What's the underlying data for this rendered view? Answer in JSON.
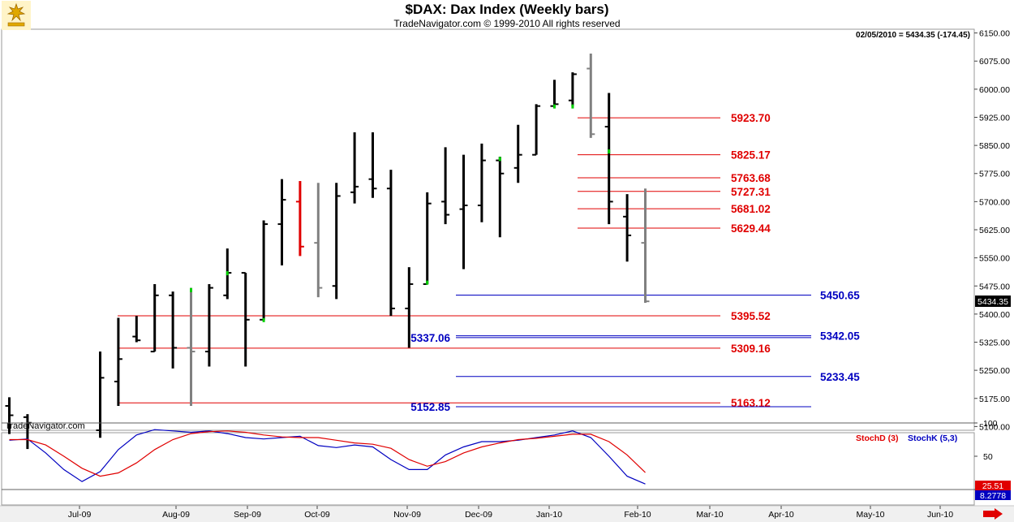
{
  "window": {
    "title": "$DAX:  Dax Index  (Weekly bars)",
    "subtitle": "TradeNavigator.com © 1999-2010 All rights reserved",
    "watermark": "TradeNavigator.com"
  },
  "chart_data": {
    "type": "ohlc",
    "last_bar_readout": "02/05/2010 = 5434.35 (-174.45)",
    "y_range": [
      5090,
      6160
    ],
    "y_ticks": [
      "6150.00",
      "6075.00",
      "6000.00",
      "5925.00",
      "5850.00",
      "5775.00",
      "5700.00",
      "5625.00",
      "5550.00",
      "5475.00",
      "5400.00",
      "5325.00",
      "5250.00",
      "5175.00",
      "5100.00"
    ],
    "x_labels": [
      "Jul-09",
      "Aug-09",
      "Sep-09",
      "Oct-09",
      "Nov-09",
      "Dec-09",
      "Jan-10",
      "Feb-10",
      "Mar-10",
      "Apr-10",
      "May-10",
      "Jun-10"
    ],
    "last_price_label": "5434.35",
    "bars": [
      {
        "week": 0,
        "open": 5155,
        "high": 5178,
        "low": 5080,
        "close": 5130,
        "color": "#000000"
      },
      {
        "week": 1,
        "open": 5125,
        "high": 5133,
        "low": 5040,
        "close": 5110,
        "color": "#000000"
      },
      {
        "week": 5,
        "open": 5090,
        "high": 5300,
        "low": 5070,
        "close": 5230,
        "color": "#000000"
      },
      {
        "week": 6,
        "open": 5220,
        "high": 5390,
        "low": 5155,
        "close": 5280,
        "color": "#000000"
      },
      {
        "week": 7,
        "open": 5340,
        "high": 5395,
        "low": 5325,
        "close": 5330,
        "color": "#000000"
      },
      {
        "week": 8,
        "open": 5300,
        "high": 5480,
        "low": 5300,
        "close": 5450,
        "color": "#000000"
      },
      {
        "week": 9,
        "open": 5450,
        "high": 5460,
        "low": 5255,
        "close": 5310,
        "color": "#000000"
      },
      {
        "week": 10,
        "open": 5310,
        "high": 5470,
        "low": 5155,
        "close": 5300,
        "color": "#808080"
      },
      {
        "week": 11,
        "open": 5300,
        "high": 5480,
        "low": 5260,
        "close": 5470,
        "color": "#000000"
      },
      {
        "week": 12,
        "open": 5450,
        "high": 5575,
        "low": 5440,
        "close": 5510,
        "color": "#000000"
      },
      {
        "week": 13,
        "open": 5510,
        "high": 5510,
        "low": 5260,
        "close": 5385,
        "color": "#000000"
      },
      {
        "week": 14,
        "open": 5385,
        "high": 5650,
        "low": 5385,
        "close": 5640,
        "color": "#000000"
      },
      {
        "week": 15,
        "open": 5640,
        "high": 5760,
        "low": 5530,
        "close": 5705,
        "color": "#000000"
      },
      {
        "week": 16,
        "open": 5700,
        "high": 5755,
        "low": 5555,
        "close": 5580,
        "color": "#e00000"
      },
      {
        "week": 17,
        "open": 5590,
        "high": 5750,
        "low": 5445,
        "close": 5470,
        "color": "#808080"
      },
      {
        "week": 18,
        "open": 5475,
        "high": 5750,
        "low": 5440,
        "close": 5715,
        "color": "#000000"
      },
      {
        "week": 19,
        "open": 5725,
        "high": 5885,
        "low": 5695,
        "close": 5740,
        "color": "#000000"
      },
      {
        "week": 20,
        "open": 5760,
        "high": 5885,
        "low": 5710,
        "close": 5735,
        "color": "#000000"
      },
      {
        "week": 21,
        "open": 5735,
        "high": 5785,
        "low": 5395,
        "close": 5415,
        "color": "#000000"
      },
      {
        "week": 22,
        "open": 5415,
        "high": 5525,
        "low": 5310,
        "close": 5480,
        "color": "#000000"
      },
      {
        "week": 23,
        "open": 5480,
        "high": 5725,
        "low": 5480,
        "close": 5695,
        "color": "#000000"
      },
      {
        "week": 24,
        "open": 5700,
        "high": 5845,
        "low": 5640,
        "close": 5665,
        "color": "#000000"
      },
      {
        "week": 25,
        "open": 5680,
        "high": 5825,
        "low": 5520,
        "close": 5690,
        "color": "#000000"
      },
      {
        "week": 26,
        "open": 5690,
        "high": 5855,
        "low": 5645,
        "close": 5810,
        "color": "#000000"
      },
      {
        "week": 27,
        "open": 5810,
        "high": 5820,
        "low": 5605,
        "close": 5775,
        "color": "#000000"
      },
      {
        "week": 28,
        "open": 5790,
        "high": 5905,
        "low": 5750,
        "close": 5825,
        "color": "#000000"
      },
      {
        "week": 29,
        "open": 5825,
        "high": 5960,
        "low": 5825,
        "close": 5955,
        "color": "#000000"
      },
      {
        "week": 30,
        "open": 5955,
        "high": 6025,
        "low": 5955,
        "close": 5960,
        "color": "#000000"
      },
      {
        "week": 31,
        "open": 5970,
        "high": 6045,
        "low": 5955,
        "close": 6040,
        "color": "#000000"
      },
      {
        "week": 32,
        "open": 6055,
        "high": 6095,
        "low": 5870,
        "close": 5880,
        "color": "#808080"
      },
      {
        "week": 33,
        "open": 5900,
        "high": 5990,
        "low": 5640,
        "close": 5700,
        "color": "#000000"
      },
      {
        "week": 34,
        "open": 5660,
        "high": 5720,
        "low": 5540,
        "close": 5610,
        "color": "#000000"
      },
      {
        "week": 35,
        "open": 5590,
        "high": 5735,
        "low": 5430,
        "close": 5434,
        "color": "#808080"
      }
    ],
    "green_marks": [
      {
        "week": 10,
        "price": 5465
      },
      {
        "week": 12,
        "price": 5510
      },
      {
        "week": 14,
        "price": 5385
      },
      {
        "week": 23,
        "price": 5485
      },
      {
        "week": 27,
        "price": 5815
      },
      {
        "week": 30,
        "price": 5955
      },
      {
        "week": 31,
        "price": 5955
      },
      {
        "week": 33,
        "price": 5835
      }
    ],
    "levels": [
      {
        "value": 5923.7,
        "label": "5923.70",
        "color": "#e00000"
      },
      {
        "value": 5825.17,
        "label": "5825.17",
        "color": "#e00000"
      },
      {
        "value": 5763.68,
        "label": "5763.68",
        "color": "#e00000"
      },
      {
        "value": 5727.31,
        "label": "5727.31",
        "color": "#e00000"
      },
      {
        "value": 5681.02,
        "label": "5681.02",
        "color": "#e00000"
      },
      {
        "value": 5629.44,
        "label": "5629.44",
        "color": "#e00000"
      },
      {
        "value": 5395.52,
        "label": "5395.52",
        "color": "#e00000"
      },
      {
        "value": 5309.16,
        "label": "5309.16",
        "color": "#e00000"
      },
      {
        "value": 5163.12,
        "label": "5163.12",
        "color": "#e00000"
      },
      {
        "value": 5450.65,
        "label": "5450.65",
        "color": "#0000c0"
      },
      {
        "value": 5342.05,
        "label": "5342.05",
        "color": "#0000c0"
      },
      {
        "value": 5337.06,
        "label": "5337.06",
        "color": "#0000c0"
      },
      {
        "value": 5233.45,
        "label": "5233.45",
        "color": "#0000c0"
      },
      {
        "value": 5152.85,
        "label": "5152.85",
        "color": "#0000c0"
      }
    ],
    "stochastic": {
      "y_ticks": [
        "100",
        "50",
        "0"
      ],
      "stochd_label": "StochD (3)",
      "stochk_label": "StochK (5,3)",
      "stochd_color": "#e00000",
      "stochk_color": "#0000c0",
      "stochd_last": "25.51",
      "stochk_last": "8.2778",
      "stochd": [
        {
          "week": 0,
          "v": 75
        },
        {
          "week": 1,
          "v": 75
        },
        {
          "week": 2,
          "v": 67
        },
        {
          "week": 3,
          "v": 50
        },
        {
          "week": 4,
          "v": 32
        },
        {
          "week": 5,
          "v": 20
        },
        {
          "week": 6,
          "v": 25
        },
        {
          "week": 7,
          "v": 40
        },
        {
          "week": 8,
          "v": 60
        },
        {
          "week": 9,
          "v": 75
        },
        {
          "week": 10,
          "v": 84
        },
        {
          "week": 11,
          "v": 87
        },
        {
          "week": 12,
          "v": 88
        },
        {
          "week": 13,
          "v": 86
        },
        {
          "week": 14,
          "v": 82
        },
        {
          "week": 15,
          "v": 79
        },
        {
          "week": 16,
          "v": 78
        },
        {
          "week": 17,
          "v": 78
        },
        {
          "week": 18,
          "v": 74
        },
        {
          "week": 19,
          "v": 70
        },
        {
          "week": 20,
          "v": 68
        },
        {
          "week": 21,
          "v": 62
        },
        {
          "week": 22,
          "v": 45
        },
        {
          "week": 23,
          "v": 35
        },
        {
          "week": 24,
          "v": 42
        },
        {
          "week": 25,
          "v": 55
        },
        {
          "week": 26,
          "v": 64
        },
        {
          "week": 27,
          "v": 70
        },
        {
          "week": 28,
          "v": 75
        },
        {
          "week": 29,
          "v": 77
        },
        {
          "week": 30,
          "v": 80
        },
        {
          "week": 31,
          "v": 83
        },
        {
          "week": 32,
          "v": 83
        },
        {
          "week": 33,
          "v": 72
        },
        {
          "week": 34,
          "v": 52
        },
        {
          "week": 35,
          "v": 25.51
        }
      ],
      "stochk": [
        {
          "week": 0,
          "v": 74
        },
        {
          "week": 1,
          "v": 76
        },
        {
          "week": 2,
          "v": 55
        },
        {
          "week": 3,
          "v": 30
        },
        {
          "week": 4,
          "v": 12
        },
        {
          "week": 5,
          "v": 27
        },
        {
          "week": 6,
          "v": 60
        },
        {
          "week": 7,
          "v": 82
        },
        {
          "week": 8,
          "v": 90
        },
        {
          "week": 9,
          "v": 88
        },
        {
          "week": 10,
          "v": 86
        },
        {
          "week": 11,
          "v": 88
        },
        {
          "week": 12,
          "v": 84
        },
        {
          "week": 13,
          "v": 78
        },
        {
          "week": 14,
          "v": 76
        },
        {
          "week": 15,
          "v": 78
        },
        {
          "week": 16,
          "v": 80
        },
        {
          "week": 17,
          "v": 66
        },
        {
          "week": 18,
          "v": 63
        },
        {
          "week": 19,
          "v": 67
        },
        {
          "week": 20,
          "v": 64
        },
        {
          "week": 21,
          "v": 45
        },
        {
          "week": 22,
          "v": 30
        },
        {
          "week": 23,
          "v": 30
        },
        {
          "week": 24,
          "v": 52
        },
        {
          "week": 25,
          "v": 64
        },
        {
          "week": 26,
          "v": 72
        },
        {
          "week": 27,
          "v": 72
        },
        {
          "week": 28,
          "v": 74
        },
        {
          "week": 29,
          "v": 78
        },
        {
          "week": 30,
          "v": 82
        },
        {
          "week": 31,
          "v": 88
        },
        {
          "week": 32,
          "v": 78
        },
        {
          "week": 33,
          "v": 50
        },
        {
          "week": 34,
          "v": 20
        },
        {
          "week": 35,
          "v": 8.28
        }
      ]
    }
  }
}
